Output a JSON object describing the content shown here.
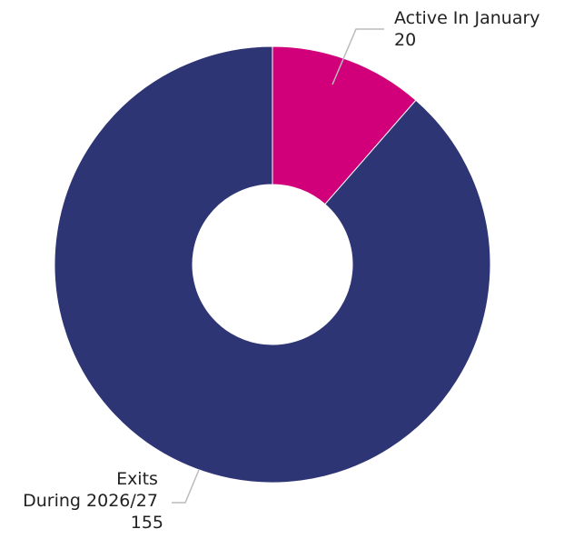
{
  "chart_data": {
    "type": "pie",
    "donut": true,
    "slices": [
      {
        "label_lines": [
          "Active In January"
        ],
        "value": 20,
        "value_text": "20",
        "color": "#D1007A"
      },
      {
        "label_lines": [
          "Exits",
          "During 2026/27"
        ],
        "value": 155,
        "value_text": "155",
        "color": "#2E3575"
      }
    ],
    "start_angle_deg": 0,
    "direction": "clockwise",
    "legend": "none",
    "leader_line_color": "#BBBBBB"
  }
}
